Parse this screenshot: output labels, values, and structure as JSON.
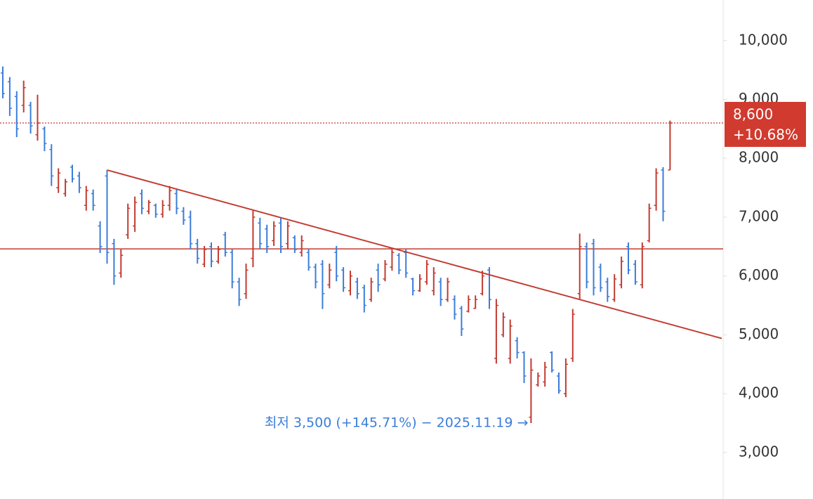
{
  "chart_data": {
    "type": "ohlc",
    "up_color": "#c23b30",
    "down_color": "#3b7dd8",
    "ylim": [
      2210,
      10690
    ],
    "yticks": [
      {
        "value": 3000,
        "label": "3,000"
      },
      {
        "value": 4000,
        "label": "4,000"
      },
      {
        "value": 5000,
        "label": "5,000"
      },
      {
        "value": 6000,
        "label": "6,000"
      },
      {
        "value": 7000,
        "label": "7,000"
      },
      {
        "value": 8000,
        "label": "8,000"
      },
      {
        "value": 9000,
        "label": "9,000"
      },
      {
        "value": 10000,
        "label": "10,000"
      }
    ],
    "ohlc": [
      [
        9450,
        9560,
        9020,
        9100
      ],
      [
        9300,
        9380,
        8720,
        8850
      ],
      [
        9050,
        9140,
        8360,
        8500
      ],
      [
        8900,
        9320,
        8780,
        9200
      ],
      [
        8900,
        8960,
        8420,
        8550
      ],
      [
        8400,
        9080,
        8300,
        8600
      ],
      [
        8500,
        8540,
        8120,
        8250
      ],
      [
        8150,
        8240,
        7530,
        7700
      ],
      [
        7500,
        7830,
        7410,
        7750
      ],
      [
        7400,
        7650,
        7350,
        7600
      ],
      [
        7850,
        7890,
        7590,
        7650
      ],
      [
        7700,
        7770,
        7410,
        7500
      ],
      [
        7200,
        7530,
        7110,
        7450
      ],
      [
        7400,
        7470,
        7110,
        7200
      ],
      [
        6850,
        6930,
        6390,
        6500
      ],
      [
        7700,
        7800,
        6210,
        6400
      ],
      [
        6550,
        6630,
        5850,
        6000
      ],
      [
        6050,
        6450,
        5970,
        6350
      ],
      [
        6700,
        7230,
        6630,
        7150
      ],
      [
        6850,
        7350,
        6750,
        7250
      ],
      [
        7400,
        7470,
        7050,
        7150
      ],
      [
        7100,
        7290,
        7050,
        7250
      ],
      [
        7200,
        7230,
        6990,
        7050
      ],
      [
        7050,
        7290,
        6990,
        7200
      ],
      [
        7200,
        7530,
        7110,
        7450
      ],
      [
        7400,
        7470,
        7050,
        7150
      ],
      [
        7100,
        7170,
        6870,
        6950
      ],
      [
        7000,
        7110,
        6450,
        6550
      ],
      [
        6550,
        6630,
        6210,
        6300
      ],
      [
        6200,
        6510,
        6150,
        6450
      ],
      [
        6500,
        6570,
        6150,
        6250
      ],
      [
        6250,
        6510,
        6210,
        6450
      ],
      [
        6700,
        6750,
        6330,
        6400
      ],
      [
        6400,
        6450,
        5790,
        5900
      ],
      [
        5900,
        5970,
        5490,
        5600
      ],
      [
        5700,
        6210,
        5610,
        6100
      ],
      [
        6300,
        7110,
        6150,
        7000
      ],
      [
        6900,
        6990,
        6450,
        6550
      ],
      [
        6800,
        6870,
        6390,
        6500
      ],
      [
        6600,
        6930,
        6510,
        6850
      ],
      [
        6900,
        6990,
        6390,
        6500
      ],
      [
        6550,
        6930,
        6450,
        6850
      ],
      [
        6650,
        6690,
        6390,
        6450
      ],
      [
        6400,
        6690,
        6330,
        6600
      ],
      [
        6400,
        6450,
        6090,
        6150
      ],
      [
        6150,
        6210,
        5790,
        5900
      ],
      [
        6200,
        6270,
        5440,
        5700
      ],
      [
        5850,
        6210,
        5790,
        6100
      ],
      [
        6400,
        6510,
        5910,
        6000
      ],
      [
        6100,
        6150,
        5730,
        5800
      ],
      [
        5750,
        6090,
        5670,
        6000
      ],
      [
        5900,
        5970,
        5610,
        5700
      ],
      [
        5800,
        5850,
        5380,
        5500
      ],
      [
        5600,
        5970,
        5560,
        5900
      ],
      [
        6100,
        6210,
        5730,
        5850
      ],
      [
        5950,
        6270,
        5910,
        6200
      ],
      [
        6150,
        6450,
        6090,
        6400
      ],
      [
        6350,
        6390,
        6030,
        6100
      ],
      [
        6400,
        6450,
        5970,
        6050
      ],
      [
        5950,
        5970,
        5670,
        5750
      ],
      [
        5750,
        6030,
        5730,
        5950
      ],
      [
        5900,
        6270,
        5850,
        6200
      ],
      [
        5750,
        6150,
        5670,
        6050
      ],
      [
        5900,
        5970,
        5490,
        5600
      ],
      [
        5600,
        5970,
        5560,
        5900
      ],
      [
        5600,
        5670,
        5260,
        5350
      ],
      [
        5450,
        5490,
        4980,
        5100
      ],
      [
        5400,
        5670,
        5380,
        5600
      ],
      [
        5450,
        5670,
        5440,
        5600
      ],
      [
        5700,
        6090,
        5670,
        6000
      ],
      [
        6100,
        6150,
        5440,
        5600
      ],
      [
        4600,
        5610,
        4510,
        5500
      ],
      [
        5000,
        5380,
        4960,
        5300
      ],
      [
        4600,
        5260,
        4510,
        5150
      ],
      [
        4900,
        4960,
        4600,
        4700
      ],
      [
        4700,
        4720,
        4180,
        4300
      ],
      [
        3600,
        4600,
        3500,
        4400
      ],
      [
        4150,
        4360,
        4120,
        4300
      ],
      [
        4200,
        4540,
        4120,
        4450
      ],
      [
        4700,
        4720,
        4360,
        4400
      ],
      [
        4300,
        4360,
        4000,
        4050
      ],
      [
        4000,
        4600,
        3940,
        4500
      ],
      [
        4600,
        5440,
        4540,
        5350
      ],
      [
        5700,
        6720,
        5610,
        6500
      ],
      [
        6500,
        6570,
        5790,
        5900
      ],
      [
        6550,
        6630,
        5670,
        5800
      ],
      [
        6150,
        6210,
        5730,
        5800
      ],
      [
        5900,
        5970,
        5560,
        5650
      ],
      [
        5600,
        6030,
        5560,
        5950
      ],
      [
        5850,
        6330,
        5790,
        6250
      ],
      [
        6500,
        6570,
        6030,
        6100
      ],
      [
        6200,
        6270,
        5850,
        5900
      ],
      [
        5850,
        6570,
        5790,
        6500
      ],
      [
        6600,
        7230,
        6570,
        7150
      ],
      [
        7200,
        7830,
        7110,
        7750
      ],
      [
        7800,
        7850,
        6930,
        7100
      ],
      [
        7800,
        8640,
        7800,
        8600
      ]
    ],
    "support_line": 6460,
    "trend_line": [
      {
        "bar": 15,
        "value": 7800
      },
      {
        "bar": 83,
        "value": 5600
      }
    ],
    "last_price": {
      "value": 8600,
      "label": "8,600",
      "change": "+10.68%"
    },
    "low_annotation": "최저 3,500 (+145.71%) − 2025.11.19 →"
  }
}
